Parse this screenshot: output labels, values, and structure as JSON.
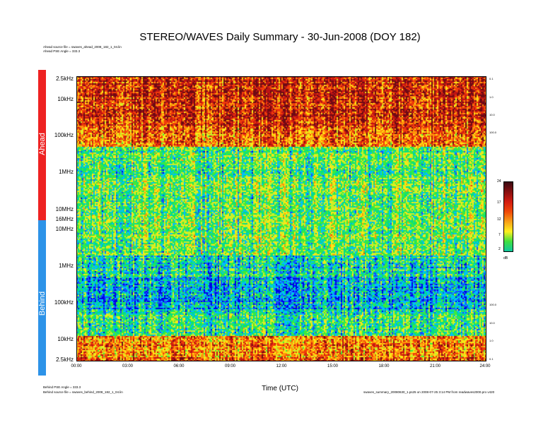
{
  "chart_data": {
    "type": "heatmap",
    "title": "STEREO/WAVES Daily Summary - 30-Jun-2008 (DOY 182)",
    "xlabel": "Time (UTC)",
    "x_ticks": [
      "00:00",
      "03:00",
      "06:00",
      "09:00",
      "12:00",
      "15:00",
      "18:00",
      "21:00",
      "24:00"
    ],
    "panels": [
      {
        "name": "Ahead",
        "color": "#ee2222",
        "y_ticks": [
          "2.5kHz",
          "10kHz",
          "100kHz",
          "1MHz",
          "10MHz",
          "16MHz"
        ],
        "right_ticks": [
          "0.1",
          "1.0",
          "10.0",
          "100.0"
        ]
      },
      {
        "name": "Behind",
        "color": "#2d93e8",
        "y_ticks": [
          "10MHz",
          "1MHz",
          "100kHz",
          "10kHz",
          "2.5kHz"
        ],
        "right_ticks": [
          "100.0",
          "10.0",
          "1.0",
          "0.1"
        ]
      }
    ],
    "colorbar": {
      "ticks": [
        "24",
        "17",
        "12",
        "7",
        "2"
      ],
      "unit": "dB",
      "range": [
        2,
        24
      ],
      "colors": [
        "#3a0a14",
        "#8a1010",
        "#d41c10",
        "#f04a08",
        "#f8a018",
        "#fff020",
        "#40e040",
        "#10c8a0"
      ]
    }
  },
  "header": {
    "ahead_source": "Ahead source file = swaves_ahead_2008_182_1_04.lin",
    "ahead_angle": "Ahead PSE Angle = 333.3"
  },
  "footer": {
    "behind_angle": "Behind PSE Angle = 333.3",
    "behind_source": "Behind source file = swaves_behind_2008_182_1_04.lin",
    "right_note": "swaves_summary_20080630_1.ps25 on 2008-07-25 3:14 PM from readwaves2000.pro v420"
  }
}
